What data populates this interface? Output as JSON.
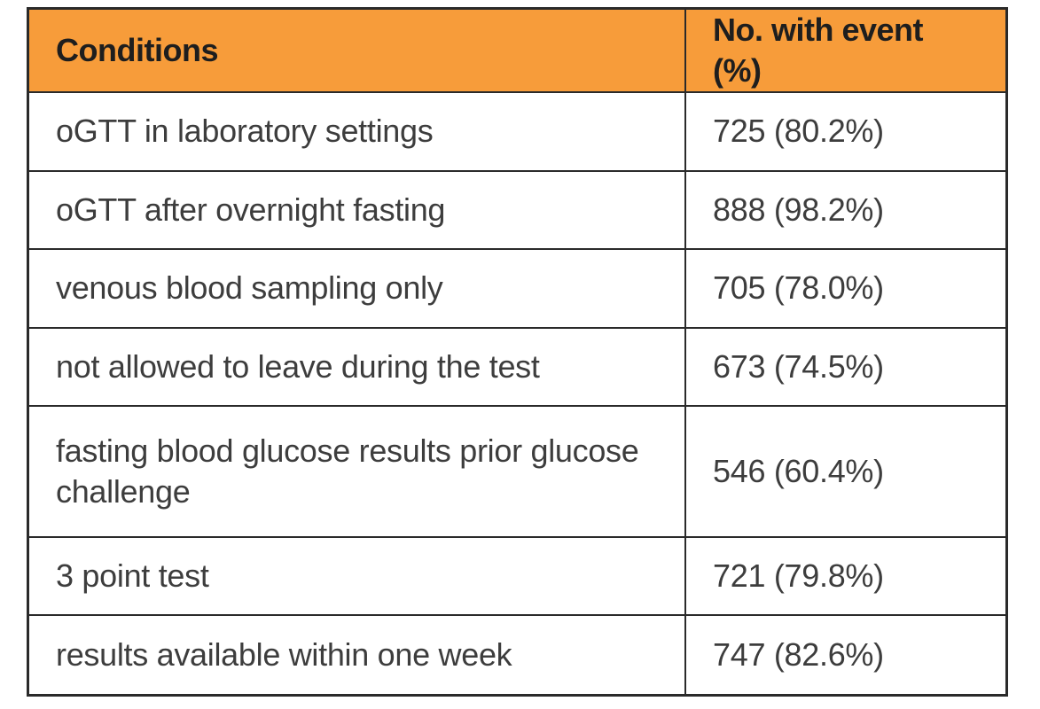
{
  "table": {
    "headers": [
      "Conditions",
      "No. with event (%)"
    ],
    "rows": [
      {
        "condition": "oGTT in laboratory settings",
        "value": "725 (80.2%)"
      },
      {
        "condition": "oGTT after overnight fasting",
        "value": "888 (98.2%)"
      },
      {
        "condition": "venous blood sampling only",
        "value": "705 (78.0%)"
      },
      {
        "condition": "not allowed to leave during the test",
        "value": "673 (74.5%)"
      },
      {
        "condition": "fasting blood glucose results prior glucose challenge",
        "value": "546 (60.4%)"
      },
      {
        "condition": "3 point test",
        "value": "721 (79.8%)"
      },
      {
        "condition": "results available within one week",
        "value": "747 (82.6%)"
      }
    ]
  },
  "colors": {
    "header_background": "#f79c3a",
    "border": "#2a2a2a",
    "text": "#3d3d3d"
  }
}
